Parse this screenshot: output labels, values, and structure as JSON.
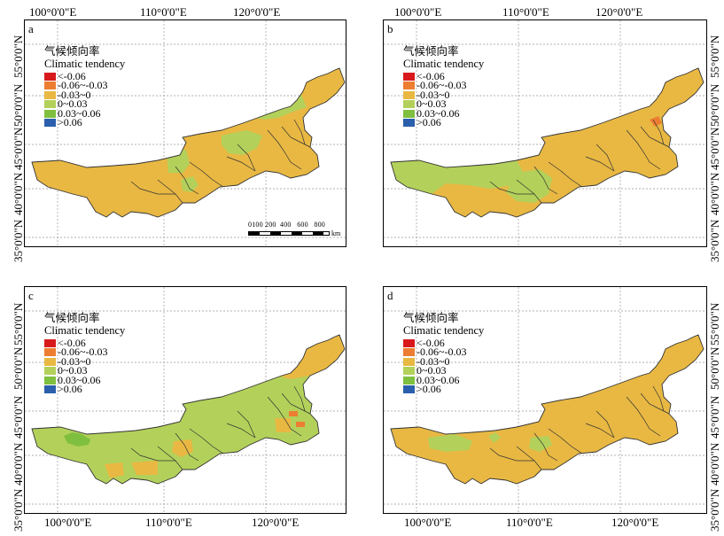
{
  "axes": {
    "lon_labels": [
      "100°0'0\"E",
      "110°0'0\"E",
      "120°0'0\"E"
    ],
    "lat_labels": [
      "55°0'0\"N",
      "50°0'0\"N",
      "45°0'0\"N",
      "40°0'0\"N",
      "35°0'0\"N"
    ]
  },
  "legend": {
    "title_cn": "气候倾向率",
    "title_en": "Climatic tendency",
    "items": [
      {
        "label": "<-0.06",
        "color": "#d7191c"
      },
      {
        "label": "-0.06~-0.03",
        "color": "#ed7d31"
      },
      {
        "label": "-0.03~0",
        "color": "#e8b843"
      },
      {
        "label": "0~0.03",
        "color": "#b3d15a"
      },
      {
        "label": "0.03~0.06",
        "color": "#7fbf3f"
      },
      {
        "label": ">0.06",
        "color": "#2b5fad"
      }
    ]
  },
  "panels": [
    {
      "label": "a",
      "base_color": "#e8b843"
    },
    {
      "label": "b",
      "base_color": "#e8b843"
    },
    {
      "label": "c",
      "base_color": "#b3d15a"
    },
    {
      "label": "d",
      "base_color": "#e8b843"
    }
  ],
  "scale_bar": {
    "ticks": "0100 200  400   600   800",
    "unit": "km"
  }
}
